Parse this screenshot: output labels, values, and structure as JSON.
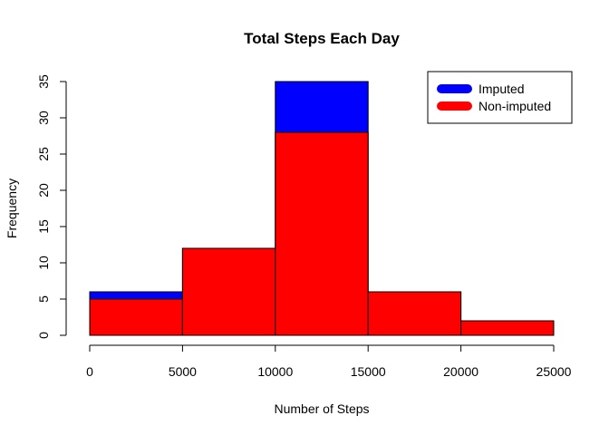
{
  "chart_data": {
    "type": "bar",
    "title": "Total Steps Each Day",
    "xlabel": "Number of Steps",
    "ylabel": "Frequency",
    "xlim": [
      0,
      25000
    ],
    "ylim": [
      0,
      35
    ],
    "x_ticks": [
      0,
      5000,
      10000,
      15000,
      20000,
      25000
    ],
    "y_ticks": [
      0,
      5,
      10,
      15,
      20,
      25,
      30,
      35
    ],
    "bins": [
      [
        0,
        5000
      ],
      [
        5000,
        10000
      ],
      [
        10000,
        15000
      ],
      [
        15000,
        20000
      ],
      [
        20000,
        25000
      ]
    ],
    "series": [
      {
        "name": "Imputed",
        "color": "#0000ff",
        "values": [
          6,
          12,
          35,
          6,
          2
        ]
      },
      {
        "name": "Non-imputed",
        "color": "#ff0000",
        "values": [
          5,
          12,
          28,
          6,
          2
        ]
      }
    ],
    "legend": {
      "position": "top-right",
      "entries": [
        {
          "label": "Imputed",
          "color": "#0000ff"
        },
        {
          "label": "Non-imputed",
          "color": "#ff0000"
        }
      ]
    },
    "grid": false
  }
}
